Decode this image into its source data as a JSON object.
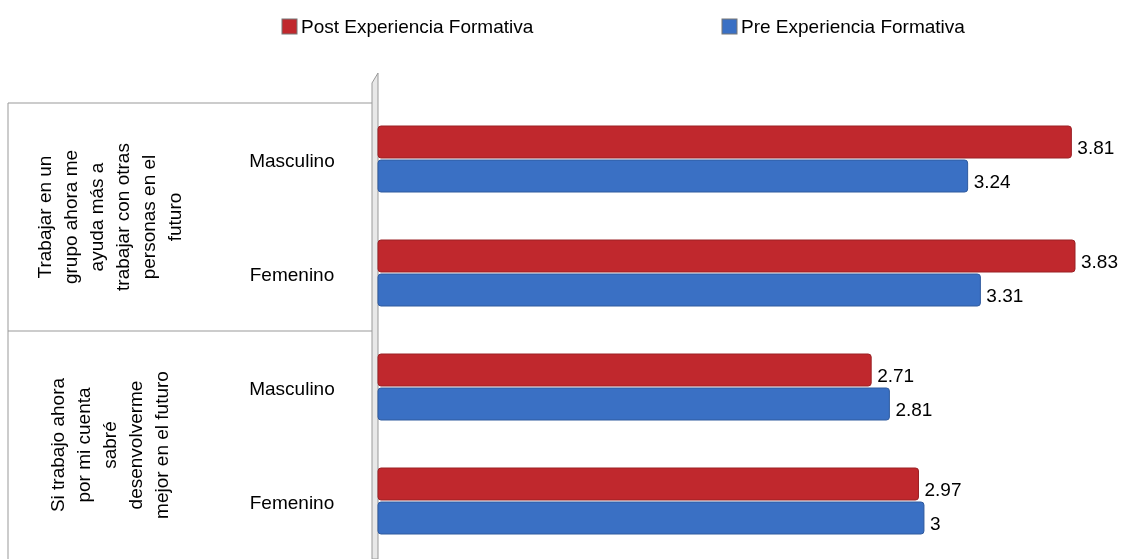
{
  "chart_data": {
    "type": "bar",
    "orientation": "horizontal",
    "categories": [
      "Masculino",
      "Femenino",
      "Masculino",
      "Femenino"
    ],
    "series": [
      {
        "name": "Post Experiencia Formativa",
        "color": "#c0282d",
        "values": [
          3.81,
          3.83,
          2.71,
          2.97
        ]
      },
      {
        "name": "Pre Experiencia Formativa",
        "color": "#3a70c4",
        "values": [
          3.24,
          3.31,
          2.81,
          3
        ]
      }
    ],
    "annotations": [
      "Trabajar en un grupo ahora me ayuda más a trabajar con otras personas en el futuro",
      "Si trabajo ahora por mi cuenta sabré desenvolverme mejor en el futuro"
    ],
    "data_labels": true,
    "legend": "top"
  }
}
